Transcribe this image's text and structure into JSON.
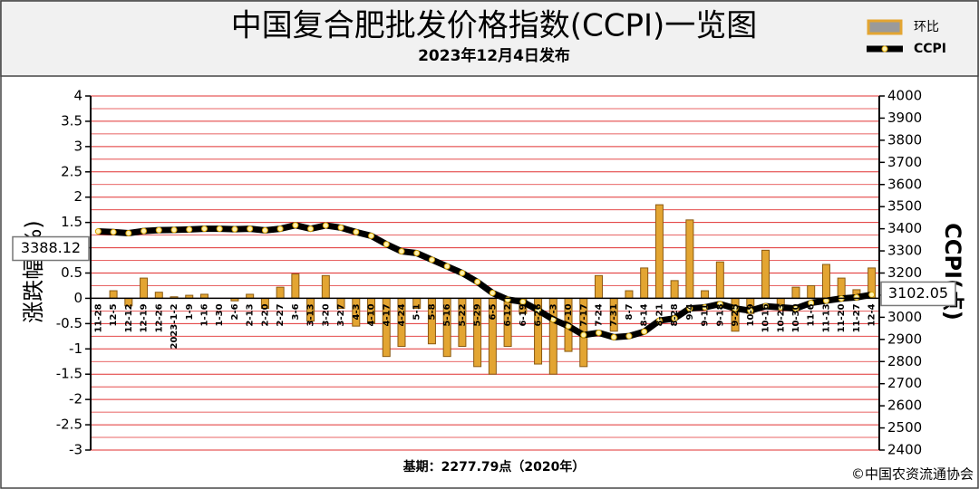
{
  "chart_data": {
    "type": "combo",
    "title": "中国复合肥批发价格指数(CCPI)一览图",
    "subtitle": "2023年12月4日发布",
    "ylabel": "涨跌幅(%)",
    "y2label": "CCPI(点)",
    "footnote": "基期：2277.79点（2020年）",
    "source": "©中国农资流通协会",
    "categories": [
      "11-28",
      "12-5",
      "12-12",
      "12-19",
      "12-26",
      "2023-1-2",
      "1-9",
      "1-16",
      "1-30",
      "2-6",
      "2-13",
      "2-20",
      "2-27",
      "3-6",
      "3-13",
      "3-20",
      "3-27",
      "4-3",
      "4-10",
      "4-17",
      "4-24",
      "5-1",
      "5-8",
      "5-16",
      "5-22",
      "5-29",
      "6-5",
      "6-12",
      "6-19",
      "6-26",
      "7-3",
      "7-10",
      "7-17",
      "7-24",
      "7-31",
      "8-7",
      "8-14",
      "8-21",
      "8-28",
      "9-4",
      "9-11",
      "9-18",
      "9-25",
      "10-9",
      "10-16",
      "10-23",
      "10-30",
      "11-6",
      "11-13",
      "11-20",
      "11-27",
      "12-4"
    ],
    "series": [
      {
        "name": "环比",
        "type": "bar",
        "color": "#e3a532",
        "values": [
          0,
          0.15,
          -0.15,
          0.4,
          0.12,
          0.03,
          0.06,
          0.08,
          0,
          -0.05,
          0.08,
          -0.2,
          0.22,
          0.48,
          -0.45,
          0.45,
          -0.2,
          -0.55,
          -0.5,
          -1.15,
          -0.95,
          -0.2,
          -0.9,
          -1.15,
          -0.95,
          -1.35,
          -1.5,
          -0.95,
          -0.3,
          -1.3,
          -1.5,
          -1.05,
          -1.35,
          0.45,
          -0.65,
          0.15,
          0.6,
          1.85,
          0.35,
          1.55,
          0.15,
          0.72,
          -0.65,
          -0.3,
          0.95,
          -0.2,
          0.22,
          0.25,
          0.67,
          0.4,
          0.17,
          0.6
        ]
      },
      {
        "name": "CCPI",
        "type": "line",
        "axis": "y2",
        "color": "#000000",
        "values": [
          3388.12,
          3385,
          3380,
          3390,
          3394,
          3395,
          3397,
          3400,
          3400,
          3398,
          3400,
          3393,
          3400,
          3416,
          3400,
          3415,
          3405,
          3385,
          3368,
          3330,
          3298,
          3290,
          3260,
          3230,
          3200,
          3160,
          3110,
          3080,
          3070,
          3032,
          2990,
          2960,
          2920,
          2930,
          2910,
          2915,
          2935,
          2985,
          2995,
          3040,
          3045,
          3060,
          3040,
          3030,
          3050,
          3045,
          3040,
          3065,
          3075,
          3085,
          3090,
          3102.05
        ]
      }
    ],
    "ylim": [
      -3,
      4
    ],
    "yticks": [
      -3,
      -2.5,
      -2,
      -1.5,
      -1,
      -0.5,
      0,
      0.5,
      1,
      1.5,
      2,
      2.5,
      3,
      3.5,
      4
    ],
    "y2lim": [
      2400,
      4000
    ],
    "y2ticks": [
      2400,
      2500,
      2600,
      2700,
      2800,
      2900,
      3000,
      3100,
      3200,
      3300,
      3400,
      3500,
      3600,
      3700,
      3800,
      3900,
      4000
    ],
    "grid": true,
    "grid_color": "#e03030",
    "legend": "top-right"
  }
}
